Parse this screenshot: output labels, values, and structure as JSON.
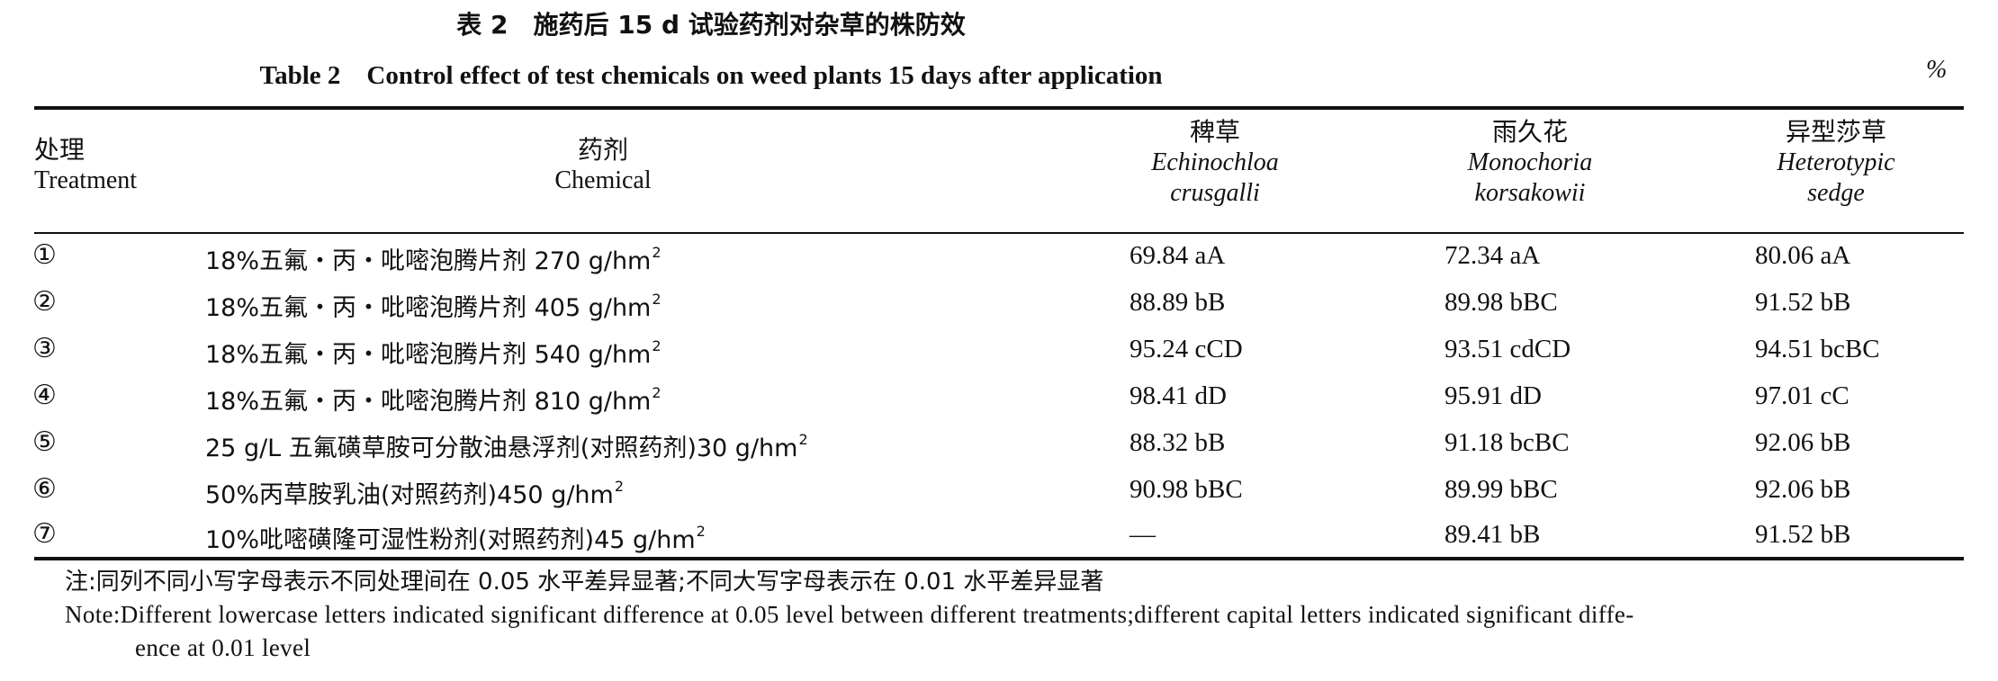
{
  "title": {
    "cn": "表 2　施药后 15 d 试验药剂对杂草的株防效",
    "en": "Table 2　Control effect of test chemicals on weed plants 15 days after application",
    "unit": "%"
  },
  "headers": {
    "treatment_cn": "处理",
    "treatment_en": "Treatment",
    "chemical_cn": "药剂",
    "chemical_en": "Chemical",
    "col1_cn": "稗草",
    "col1_sci1": "Echinochloa",
    "col1_sci2": "crusgalli",
    "col2_cn": "雨久花",
    "col2_sci1": "Monochoria",
    "col2_sci2": "korsakowii",
    "col3_cn": "异型莎草",
    "col3_sci1": "Heterotypic",
    "col3_sci2": "sedge"
  },
  "rows": [
    {
      "no": "①",
      "chem": "18%五氟・丙・吡嘧泡腾片剂 270 g/hm",
      "sup": "2",
      "v1": "69.84 aA",
      "v2": "72.34 aA",
      "v3": "80.06 aA"
    },
    {
      "no": "②",
      "chem": "18%五氟・丙・吡嘧泡腾片剂 405 g/hm",
      "sup": "2",
      "v1": "88.89 bB",
      "v2": "89.98 bBC",
      "v3": "91.52 bB"
    },
    {
      "no": "③",
      "chem": "18%五氟・丙・吡嘧泡腾片剂 540 g/hm",
      "sup": "2",
      "v1": "95.24 cCD",
      "v2": "93.51 cdCD",
      "v3": "94.51 bcBC"
    },
    {
      "no": "④",
      "chem": "18%五氟・丙・吡嘧泡腾片剂 810 g/hm",
      "sup": "2",
      "v1": "98.41 dD",
      "v2": "95.91 dD",
      "v3": "97.01 cC"
    },
    {
      "no": "⑤",
      "chem": "25 g/L 五氟磺草胺可分散油悬浮剂(对照药剂)30 g/hm",
      "sup": "2",
      "v1": "88.32 bB",
      "v2": "91.18 bcBC",
      "v3": "92.06 bB"
    },
    {
      "no": "⑥",
      "chem": "50%丙草胺乳油(对照药剂)450 g/hm",
      "sup": "2",
      "v1": "90.98 bBC",
      "v2": "89.99 bBC",
      "v3": "92.06 bB"
    },
    {
      "no": "⑦",
      "chem": "10%吡嘧磺隆可湿性粉剂(对照药剂)45 g/hm",
      "sup": "2",
      "v1": "—",
      "v2": "89.41 bB",
      "v3": "91.52 bB"
    }
  ],
  "notes": {
    "cn": "注:同列不同小写字母表示不同处理间在 0.05 水平差异显著;不同大写字母表示在 0.01 水平差异显著",
    "en_line1": "Note:Different lowercase letters indicated significant difference at 0.05 level between different treatments;different capital letters indicated significant diffe-",
    "en_line2": "ence at 0.01 level"
  }
}
